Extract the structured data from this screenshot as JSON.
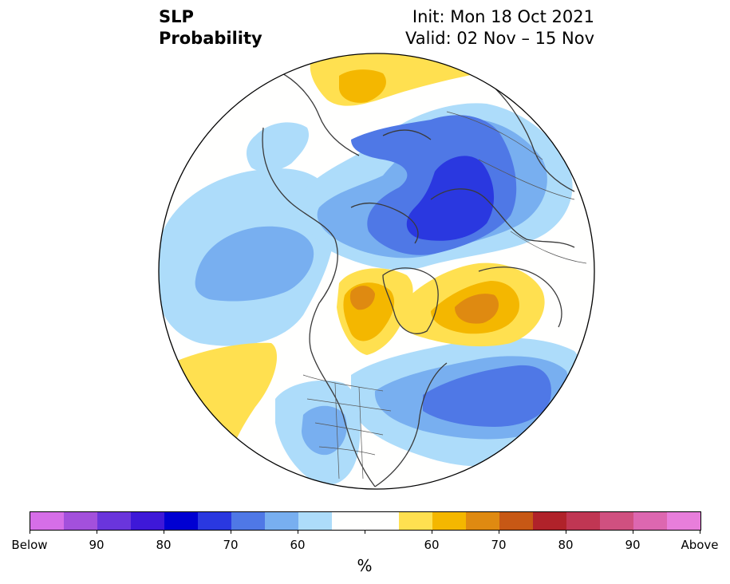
{
  "title": {
    "left_line1": "SLP",
    "left_line2": "Probability",
    "right_line1": "Init: Mon 18 Oct 2021",
    "right_line2": "Valid: 02 Nov – 15 Nov"
  },
  "map": {
    "projection": "north-polar-stereographic",
    "regions": [
      {
        "name": "north-pacific-aleutian-low",
        "category": "below",
        "max_probability": 70
      },
      {
        "name": "arctic-siberia-low",
        "category": "below",
        "max_probability": 80
      },
      {
        "name": "canadian-arctic-high",
        "category": "above",
        "max_probability": 65
      },
      {
        "name": "north-atlantic-high",
        "category": "above",
        "max_probability": 70
      },
      {
        "name": "europe-low",
        "category": "below",
        "max_probability": 70
      },
      {
        "name": "eastern-us-low",
        "category": "below",
        "max_probability": 60
      },
      {
        "name": "east-pacific-high",
        "category": "above",
        "max_probability": 55
      }
    ]
  },
  "colorbar": {
    "colors": [
      "#d66ee8",
      "#a350dc",
      "#6a35dc",
      "#3e18d8",
      "#0000d2",
      "#2a38e0",
      "#4f78e6",
      "#78aff0",
      "#addcfa",
      "#fffffe",
      "#fffffe",
      "#ffe050",
      "#f4b700",
      "#df8a11",
      "#c75815",
      "#b0222a",
      "#c03653",
      "#d05080",
      "#dd67b0",
      "#e87edb"
    ],
    "tick_labels": [
      "Below",
      "90",
      "80",
      "70",
      "60",
      "60",
      "70",
      "80",
      "90",
      "Above"
    ],
    "unit": "%"
  },
  "colors": {
    "land_outline": "#3a3a3a",
    "border_line": "#555555"
  }
}
